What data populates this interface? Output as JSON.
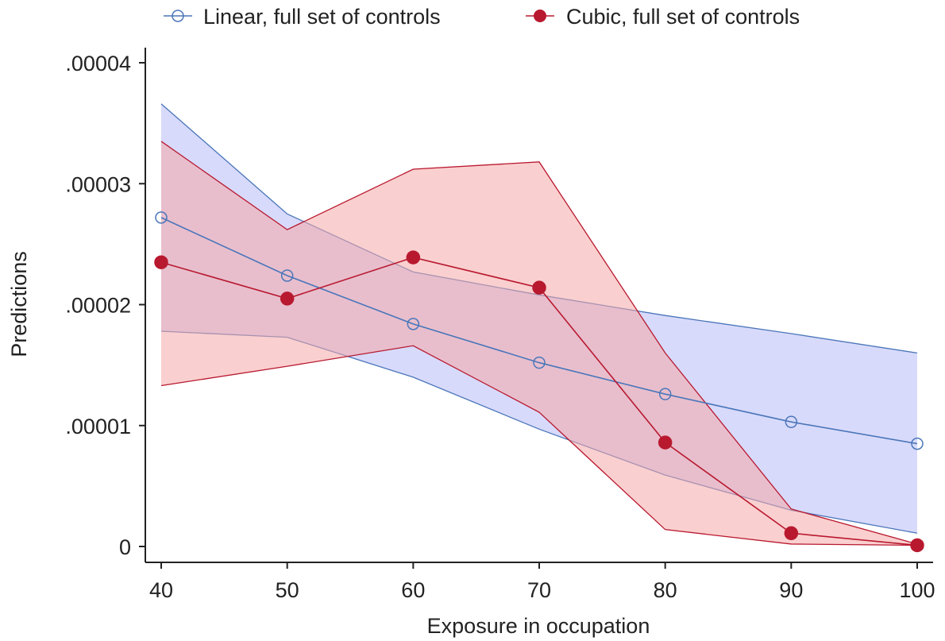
{
  "colors": {
    "linear_line": "#4a76b9",
    "linear_band": "#b8bcf7",
    "cubic_line": "#b8192f",
    "cubic_band": "#f6a7a7",
    "axis": "#222222"
  },
  "chart_data": {
    "type": "line",
    "xlabel": "Exposure in occupation",
    "ylabel": "Predictions",
    "xlim": [
      40,
      100
    ],
    "ylim": [
      0,
      4e-05
    ],
    "x_ticks": [
      40,
      50,
      60,
      70,
      80,
      90,
      100
    ],
    "y_ticks": [
      0,
      1e-05,
      2e-05,
      3e-05,
      4e-05
    ],
    "y_tick_labels": [
      "0",
      ".00001",
      ".00002",
      ".00003",
      ".00004"
    ],
    "legend_position": "top",
    "grid": false,
    "x": [
      40,
      50,
      60,
      70,
      80,
      90,
      100
    ],
    "series": [
      {
        "name": "Linear, full set of controls",
        "marker": "hollow-circle",
        "values": [
          2.72e-05,
          2.24e-05,
          1.84e-05,
          1.52e-05,
          1.26e-05,
          1.03e-05,
          8.5e-06
        ],
        "ci_upper": [
          3.66e-05,
          2.75e-05,
          2.27e-05,
          2.08e-05,
          1.91e-05,
          1.76e-05,
          1.6e-05
        ],
        "ci_lower": [
          1.78e-05,
          1.73e-05,
          1.4e-05,
          9.7e-06,
          5.9e-06,
          3e-06,
          1.1e-06
        ]
      },
      {
        "name": "Cubic, full set of controls",
        "marker": "filled-circle",
        "values": [
          2.35e-05,
          2.05e-05,
          2.39e-05,
          2.14e-05,
          8.6e-06,
          1.1e-06,
          1e-07
        ],
        "ci_upper": [
          3.35e-05,
          2.62e-05,
          3.12e-05,
          3.18e-05,
          1.6e-05,
          3.1e-06,
          2e-07
        ],
        "ci_lower": [
          1.33e-05,
          1.49e-05,
          1.66e-05,
          1.11e-05,
          1.4e-06,
          2e-07,
          1e-07
        ]
      }
    ]
  }
}
